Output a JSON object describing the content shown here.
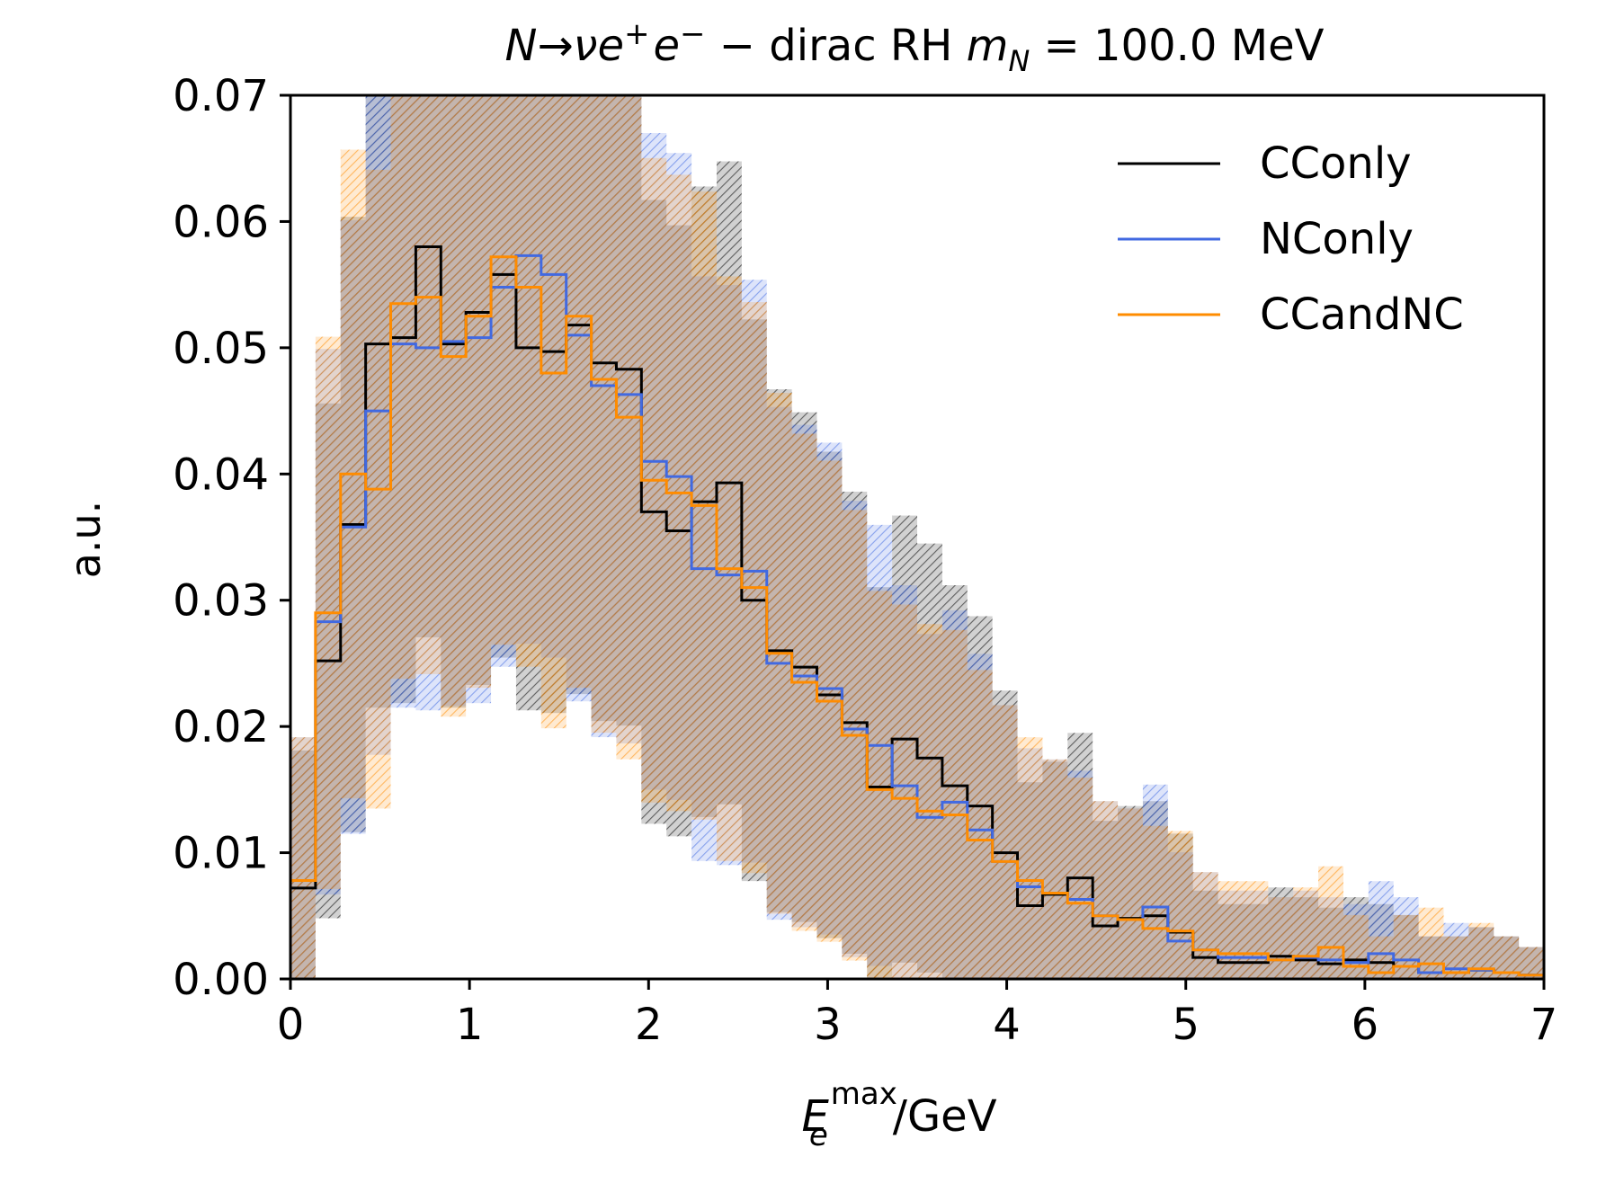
{
  "chart_data": {
    "type": "line",
    "style": "step-histogram with shaded hatched error bands",
    "title": {
      "N": "N",
      "arrow": "→",
      "nu": "ν",
      "e": "e",
      "plus": "+",
      "e2": "e",
      "minus": "−",
      "text": " − dirac RH ",
      "m": "m",
      "sub_N": "N",
      "eq": " = 100.0 MeV"
    },
    "xlabel": {
      "E": "E",
      "sub": "e",
      "sup": "max",
      "unit": "/GeV"
    },
    "ylabel": "a.u.",
    "xlim": [
      0,
      7
    ],
    "ylim": [
      0,
      0.07
    ],
    "x_ticks": [
      "0",
      "1",
      "2",
      "3",
      "4",
      "5",
      "6",
      "7"
    ],
    "y_ticks": [
      "0.00",
      "0.01",
      "0.02",
      "0.03",
      "0.04",
      "0.05",
      "0.06",
      "0.07"
    ],
    "legend_position": "top-right",
    "grid": false,
    "bin_width": 0.14,
    "series": [
      {
        "name": "CConly",
        "color": "#000000",
        "values": [
          0.0072,
          0.0252,
          0.036,
          0.0503,
          0.0508,
          0.058,
          0.0503,
          0.0528,
          0.0558,
          0.05,
          0.0497,
          0.0518,
          0.0488,
          0.0483,
          0.037,
          0.0355,
          0.0378,
          0.0393,
          0.03,
          0.026,
          0.0247,
          0.0225,
          0.0203,
          0.0152,
          0.019,
          0.0175,
          0.0153,
          0.0137,
          0.01,
          0.0058,
          0.0067,
          0.008,
          0.0042,
          0.0048,
          0.005,
          0.0037,
          0.0017,
          0.0013,
          0.0013,
          0.0018,
          0.0015,
          0.0012,
          0.0015,
          0.0013,
          0.001,
          0.0005,
          0.0005,
          0.0007,
          0.0005,
          0.0003
        ]
      },
      {
        "name": "NConly",
        "color": "#4169e1",
        "values": [
          0.0078,
          0.0283,
          0.0358,
          0.045,
          0.0503,
          0.05,
          0.0505,
          0.0508,
          0.0548,
          0.0573,
          0.0558,
          0.051,
          0.047,
          0.0463,
          0.041,
          0.0398,
          0.0325,
          0.032,
          0.0323,
          0.025,
          0.024,
          0.023,
          0.0198,
          0.0185,
          0.0153,
          0.0128,
          0.014,
          0.0118,
          0.0093,
          0.0073,
          0.0068,
          0.0063,
          0.005,
          0.0047,
          0.0057,
          0.003,
          0.0023,
          0.0017,
          0.0017,
          0.0015,
          0.0017,
          0.0015,
          0.0013,
          0.002,
          0.0015,
          0.0005,
          0.0008,
          0.0007,
          0.0005,
          0.0003
        ]
      },
      {
        "name": "CCandNC",
        "color": "#ff8c00",
        "values": [
          0.0078,
          0.029,
          0.04,
          0.0388,
          0.0535,
          0.054,
          0.0493,
          0.0525,
          0.0572,
          0.0548,
          0.048,
          0.0525,
          0.0475,
          0.0445,
          0.0395,
          0.0385,
          0.0375,
          0.0325,
          0.031,
          0.0258,
          0.0235,
          0.022,
          0.0193,
          0.015,
          0.0143,
          0.0133,
          0.013,
          0.011,
          0.0093,
          0.0078,
          0.0068,
          0.006,
          0.005,
          0.0047,
          0.004,
          0.0038,
          0.0023,
          0.002,
          0.002,
          0.0015,
          0.0018,
          0.0025,
          0.001,
          0.0005,
          0.001,
          0.0012,
          0.0005,
          0.0008,
          0.0005,
          0.0003
        ]
      }
    ]
  }
}
